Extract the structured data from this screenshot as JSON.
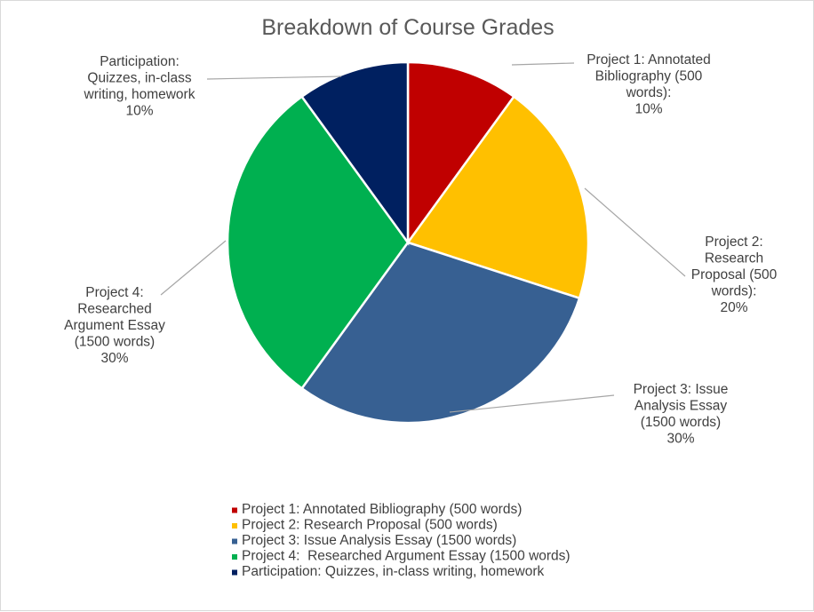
{
  "chart_data": {
    "type": "pie",
    "title": "Breakdown of Course Grades",
    "slices": [
      {
        "name": "Project 1: Annotated Bibliography (500 words)",
        "value": 10,
        "pct_label": "10%",
        "color": "#C00000",
        "label_lines": [
          "Project 1: Annotated",
          "Bibliography (500",
          "words):",
          "10%"
        ]
      },
      {
        "name": "Project 2: Research Proposal (500 words)",
        "value": 20,
        "pct_label": "20%",
        "color": "#FFC000",
        "label_lines": [
          "Project 2:",
          "Research",
          "Proposal (500",
          "words):",
          "20%"
        ]
      },
      {
        "name": "Project 3: Issue Analysis Essay (1500 words)",
        "value": 30,
        "pct_label": "30%",
        "color": "#376092",
        "label_lines": [
          "Project 3: Issue",
          "Analysis Essay",
          "(1500 words)",
          "30%"
        ]
      },
      {
        "name": "Project 4:  Researched Argument Essay (1500 words)",
        "value": 30,
        "pct_label": "30%",
        "color": "#00B050",
        "label_lines": [
          "Project 4:",
          "Researched",
          "Argument Essay",
          "(1500 words)",
          "30%"
        ]
      },
      {
        "name": "Participation: Quizzes, in-class writing, homework",
        "value": 10,
        "pct_label": "10%",
        "color": "#002060",
        "label_lines": [
          "Participation:",
          "Quizzes, in-class",
          "writing, homework",
          "10%"
        ]
      }
    ],
    "legend_position": "bottom"
  }
}
